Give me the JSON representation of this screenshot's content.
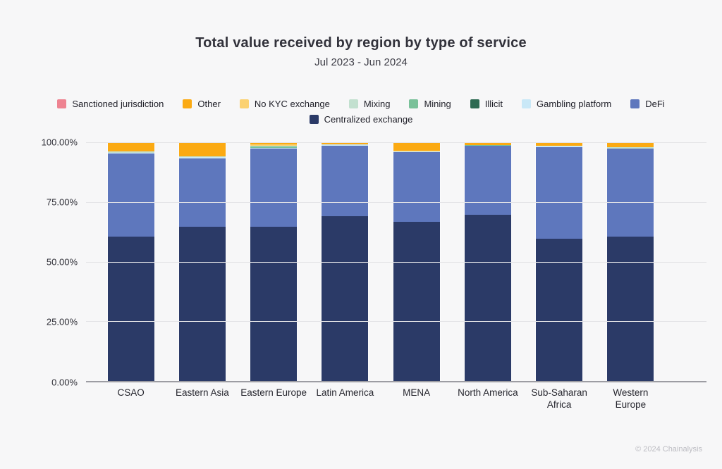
{
  "page": {
    "background": "#f7f7f8",
    "footer": "© 2024 Chainalysis"
  },
  "chart_data": {
    "type": "bar",
    "stacked": true,
    "orientation": "vertical",
    "title": "Total value received by region by type of service",
    "subtitle": "Jul 2023 - Jun 2024",
    "xlabel": "",
    "ylabel": "",
    "ylim": [
      0,
      100
    ],
    "grid": true,
    "legend_position": "top",
    "y_ticks": [
      "100.00%",
      "75.00%",
      "50.00%",
      "25.00%",
      "0.00%"
    ],
    "categories": [
      "CSAO",
      "Eastern Asia",
      "Eastern Europe",
      "Latin America",
      "MENA",
      "North America",
      "Sub-Saharan Africa",
      "Western Europe"
    ],
    "category_display": [
      "CSAO",
      "Eastern Asia",
      "Eastern Europe",
      "Latin America",
      "MENA",
      "North America",
      "Sub-Saharan\nAfrica",
      "Western\nEurope"
    ],
    "legend_order": [
      "Sanctioned jurisdiction",
      "Other",
      "No KYC exchange",
      "Mixing",
      "Mining",
      "Illicit",
      "Gambling platform",
      "DeFi",
      "Centralized exchange"
    ],
    "colors": {
      "Sanctioned jurisdiction": "#ee8391",
      "Other": "#fbaa13",
      "No KYC exchange": "#fbd170",
      "Mixing": "#c2e0cf",
      "Mining": "#79c199",
      "Illicit": "#2d6a52",
      "Gambling platform": "#c9e8f7",
      "DeFi": "#5e77bd",
      "Centralized exchange": "#2b3a67"
    },
    "units": "percent of total value received",
    "series": [
      {
        "name": "Centralized exchange",
        "values": [
          60.6,
          64.5,
          64.7,
          68.9,
          66.6,
          69.6,
          59.5,
          60.5
        ]
      },
      {
        "name": "DeFi",
        "values": [
          34.7,
          28.8,
          32.7,
          29.7,
          29.4,
          28.9,
          38.5,
          36.8
        ]
      },
      {
        "name": "Gambling platform",
        "values": [
          0.4,
          0.4,
          0.3,
          0.4,
          0.1,
          0.1,
          0.4,
          0.1
        ]
      },
      {
        "name": "Illicit",
        "values": [
          0,
          0,
          0,
          0,
          0,
          0,
          0,
          0
        ]
      },
      {
        "name": "Mining",
        "values": [
          0,
          0,
          0.5,
          0,
          0,
          0.3,
          0,
          0
        ]
      },
      {
        "name": "Mixing",
        "values": [
          0.4,
          0.4,
          0.3,
          0,
          0.1,
          0,
          0.1,
          0.4
        ]
      },
      {
        "name": "No KYC exchange",
        "values": [
          0,
          0,
          0.7,
          0.1,
          0.2,
          0,
          0,
          0.1
        ]
      },
      {
        "name": "Other",
        "values": [
          3.9,
          5.9,
          0.8,
          0.9,
          3.6,
          1.1,
          1.5,
          2.1
        ]
      },
      {
        "name": "Sanctioned jurisdiction",
        "values": [
          0,
          0,
          0,
          0,
          0,
          0,
          0,
          0
        ]
      }
    ]
  }
}
